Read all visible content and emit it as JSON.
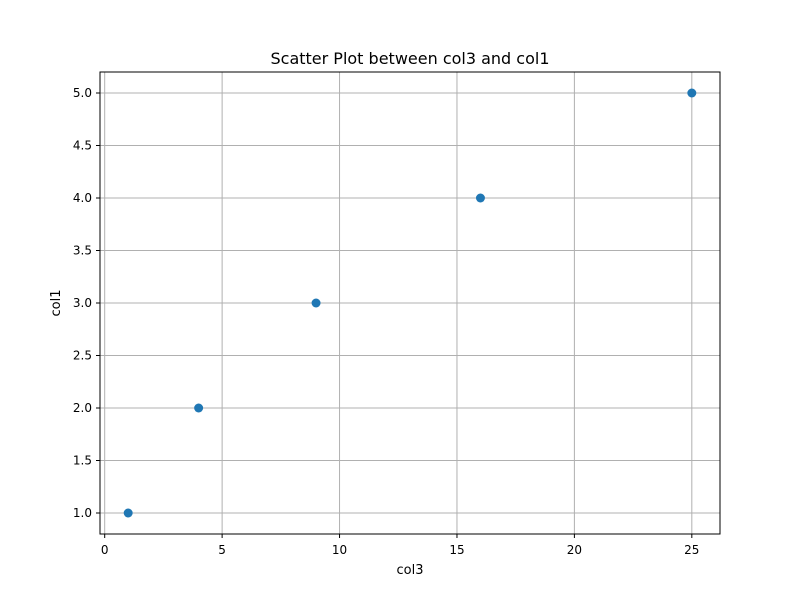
{
  "chart_data": {
    "type": "scatter",
    "title": "Scatter Plot between col3 and col1",
    "xlabel": "col3",
    "ylabel": "col1",
    "xlim": [
      -0.2,
      26.2
    ],
    "ylim": [
      0.8,
      5.2
    ],
    "x_ticks": [
      0,
      5,
      10,
      15,
      20,
      25
    ],
    "x_tick_labels": [
      "0",
      "5",
      "10",
      "15",
      "20",
      "25"
    ],
    "y_ticks": [
      1.0,
      1.5,
      2.0,
      2.5,
      3.0,
      3.5,
      4.0,
      4.5,
      5.0
    ],
    "y_tick_labels": [
      "1.0",
      "1.5",
      "2.0",
      "2.5",
      "3.0",
      "3.5",
      "4.0",
      "4.5",
      "5.0"
    ],
    "grid": true,
    "series": [
      {
        "x": [
          1,
          4,
          9,
          16,
          25
        ],
        "y": [
          1,
          2,
          3,
          4,
          5
        ],
        "color": "#1f77b4"
      }
    ]
  }
}
